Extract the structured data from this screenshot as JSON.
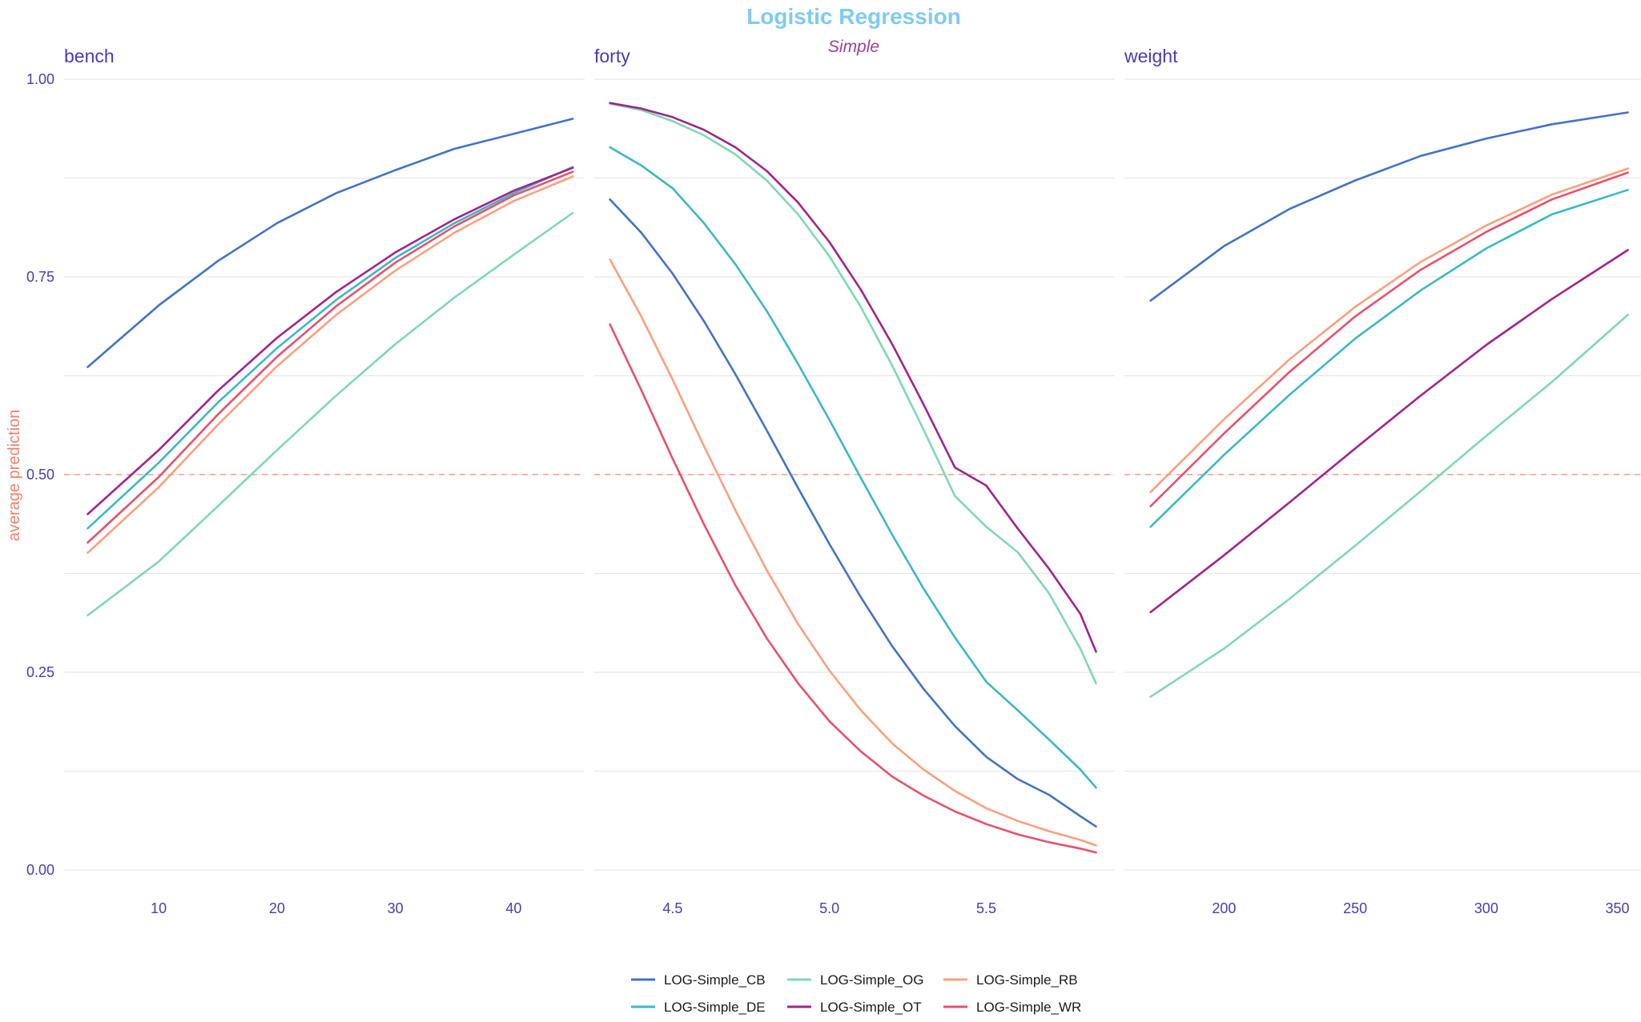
{
  "chart_data": {
    "type": "line",
    "title": "Logistic Regression",
    "subtitle": "Simple",
    "ylabel": "average prediction",
    "xlabel": "",
    "ylim": [
      0,
      1
    ],
    "yticks": [
      0.0,
      0.25,
      0.5,
      0.75,
      1.0
    ],
    "ytick_labels": [
      "0.00",
      "0.25",
      "0.50",
      "0.75",
      "1.00"
    ],
    "reference_line": 0.5,
    "grid": true,
    "legend_position": "bottom",
    "colors": {
      "title": "#7ecbf2",
      "subtitle": "#9b3f9b",
      "axis_text": "#4a3bb5",
      "ylabel": "#f08070",
      "reference": "#f4a090",
      "grid": "#e6e6e6"
    },
    "series": [
      {
        "name": "LOG-Simple_CB",
        "color": "#4472c4"
      },
      {
        "name": "LOG-Simple_DE",
        "color": "#3cb8c4"
      },
      {
        "name": "LOG-Simple_OG",
        "color": "#7fd8b4"
      },
      {
        "name": "LOG-Simple_OT",
        "color": "#a0248c"
      },
      {
        "name": "LOG-Simple_RB",
        "color": "#f9a07e"
      },
      {
        "name": "LOG-Simple_WR",
        "color": "#e8506a"
      }
    ],
    "panels": [
      {
        "label": "bench",
        "xlim": [
          2,
          46
        ],
        "xticks": [
          10,
          20,
          30,
          40
        ],
        "xtick_labels": [
          "10",
          "20",
          "30",
          "40"
        ],
        "lines": [
          {
            "series": "LOG-Simple_CB",
            "x": [
              4,
              10,
              15,
              20,
              25,
              30,
              35,
              40,
              45
            ],
            "y": [
              0.636,
              0.714,
              0.77,
              0.818,
              0.856,
              0.885,
              0.912,
              0.931,
              0.95
            ]
          },
          {
            "series": "LOG-Simple_DE",
            "x": [
              4,
              10,
              15,
              20,
              25,
              30,
              35,
              40,
              45
            ],
            "y": [
              0.432,
              0.515,
              0.591,
              0.66,
              0.721,
              0.774,
              0.818,
              0.856,
              0.889
            ]
          },
          {
            "series": "LOG-Simple_OG",
            "x": [
              4,
              10,
              15,
              20,
              25,
              30,
              35,
              40,
              45
            ],
            "y": [
              0.322,
              0.39,
              0.46,
              0.531,
              0.6,
              0.665,
              0.724,
              0.778,
              0.831
            ]
          },
          {
            "series": "LOG-Simple_OT",
            "x": [
              4,
              10,
              15,
              20,
              25,
              30,
              35,
              40,
              45
            ],
            "y": [
              0.45,
              0.531,
              0.606,
              0.673,
              0.731,
              0.781,
              0.823,
              0.859,
              0.888
            ]
          },
          {
            "series": "LOG-Simple_RB",
            "x": [
              4,
              10,
              15,
              20,
              25,
              30,
              35,
              40,
              45
            ],
            "y": [
              0.401,
              0.484,
              0.563,
              0.637,
              0.702,
              0.758,
              0.806,
              0.846,
              0.877
            ]
          },
          {
            "series": "LOG-Simple_WR",
            "x": [
              4,
              10,
              15,
              20,
              25,
              30,
              35,
              40,
              45
            ],
            "y": [
              0.414,
              0.497,
              0.576,
              0.649,
              0.713,
              0.768,
              0.814,
              0.853,
              0.883
            ]
          }
        ]
      },
      {
        "label": "forty",
        "xlim": [
          4.25,
          5.91
        ],
        "xticks": [
          4.5,
          5.0,
          5.5
        ],
        "xtick_labels": [
          "4.5",
          "5.0",
          "5.5"
        ],
        "lines": [
          {
            "series": "LOG-Simple_CB",
            "x": [
              4.3,
              4.4,
              4.5,
              4.6,
              4.7,
              4.8,
              4.9,
              5.0,
              5.1,
              5.2,
              5.3,
              5.4,
              5.5,
              5.6,
              5.7,
              5.8,
              5.85
            ],
            "y": [
              0.848,
              0.806,
              0.754,
              0.694,
              0.627,
              0.556,
              0.483,
              0.412,
              0.345,
              0.283,
              0.229,
              0.182,
              0.143,
              0.115,
              0.095,
              0.068,
              0.055
            ]
          },
          {
            "series": "LOG-Simple_DE",
            "x": [
              4.3,
              4.4,
              4.5,
              4.6,
              4.7,
              4.8,
              4.9,
              5.0,
              5.1,
              5.2,
              5.3,
              5.4,
              5.5,
              5.6,
              5.7,
              5.8,
              5.85
            ],
            "y": [
              0.914,
              0.891,
              0.862,
              0.818,
              0.766,
              0.707,
              0.64,
              0.569,
              0.496,
              0.424,
              0.356,
              0.294,
              0.238,
              0.202,
              0.165,
              0.127,
              0.104
            ]
          },
          {
            "series": "LOG-Simple_OG",
            "x": [
              4.3,
              4.4,
              4.5,
              4.6,
              4.7,
              4.8,
              4.9,
              5.0,
              5.1,
              5.2,
              5.3,
              5.4,
              5.5,
              5.6,
              5.7,
              5.8,
              5.85
            ],
            "y": [
              0.969,
              0.961,
              0.947,
              0.929,
              0.905,
              0.872,
              0.829,
              0.776,
              0.712,
              0.638,
              0.557,
              0.473,
              0.434,
              0.402,
              0.35,
              0.28,
              0.236
            ]
          },
          {
            "series": "LOG-Simple_OT",
            "x": [
              4.3,
              4.4,
              4.5,
              4.6,
              4.7,
              4.8,
              4.9,
              5.0,
              5.1,
              5.2,
              5.3,
              5.4,
              5.5,
              5.6,
              5.7,
              5.8,
              5.85
            ],
            "y": [
              0.97,
              0.963,
              0.952,
              0.936,
              0.914,
              0.884,
              0.844,
              0.794,
              0.734,
              0.665,
              0.589,
              0.509,
              0.486,
              0.432,
              0.381,
              0.324,
              0.276
            ]
          },
          {
            "series": "LOG-Simple_RB",
            "x": [
              4.3,
              4.4,
              4.5,
              4.6,
              4.7,
              4.8,
              4.9,
              5.0,
              5.1,
              5.2,
              5.3,
              5.4,
              5.5,
              5.6,
              5.7,
              5.8,
              5.85
            ],
            "y": [
              0.772,
              0.7,
              0.62,
              0.536,
              0.455,
              0.379,
              0.311,
              0.252,
              0.202,
              0.16,
              0.127,
              0.1,
              0.078,
              0.062,
              0.049,
              0.038,
              0.031
            ]
          },
          {
            "series": "LOG-Simple_WR",
            "x": [
              4.3,
              4.4,
              4.5,
              4.6,
              4.7,
              4.8,
              4.9,
              5.0,
              5.1,
              5.2,
              5.3,
              5.4,
              5.5,
              5.6,
              5.7,
              5.8,
              5.85
            ],
            "y": [
              0.69,
              0.607,
              0.52,
              0.437,
              0.36,
              0.293,
              0.236,
              0.188,
              0.15,
              0.118,
              0.094,
              0.074,
              0.058,
              0.045,
              0.035,
              0.027,
              0.022
            ]
          }
        ]
      },
      {
        "label": "weight",
        "xlim": [
          162,
          359
        ],
        "xticks": [
          200,
          250,
          300,
          350
        ],
        "xtick_labels": [
          "200",
          "250",
          "300",
          "350"
        ],
        "lines": [
          {
            "series": "LOG-Simple_CB",
            "x": [
              172,
              200,
              225,
              250,
              275,
              300,
              325,
              354
            ],
            "y": [
              0.72,
              0.789,
              0.836,
              0.872,
              0.903,
              0.925,
              0.943,
              0.958
            ]
          },
          {
            "series": "LOG-Simple_DE",
            "x": [
              172,
              200,
              225,
              250,
              275,
              300,
              325,
              354
            ],
            "y": [
              0.434,
              0.525,
              0.601,
              0.672,
              0.733,
              0.786,
              0.829,
              0.86
            ]
          },
          {
            "series": "LOG-Simple_OG",
            "x": [
              172,
              200,
              225,
              250,
              275,
              300,
              325,
              354
            ],
            "y": [
              0.219,
              0.28,
              0.343,
              0.41,
              0.479,
              0.549,
              0.617,
              0.702
            ]
          },
          {
            "series": "LOG-Simple_OT",
            "x": [
              172,
              200,
              225,
              250,
              275,
              300,
              325,
              354
            ],
            "y": [
              0.326,
              0.398,
              0.465,
              0.533,
              0.6,
              0.664,
              0.722,
              0.784
            ]
          },
          {
            "series": "LOG-Simple_RB",
            "x": [
              172,
              200,
              225,
              250,
              275,
              300,
              325,
              354
            ],
            "y": [
              0.478,
              0.57,
              0.646,
              0.712,
              0.769,
              0.815,
              0.854,
              0.887
            ]
          },
          {
            "series": "LOG-Simple_WR",
            "x": [
              172,
              200,
              225,
              250,
              275,
              300,
              325,
              354
            ],
            "y": [
              0.46,
              0.552,
              0.63,
              0.7,
              0.759,
              0.807,
              0.848,
              0.882
            ]
          }
        ]
      }
    ]
  }
}
